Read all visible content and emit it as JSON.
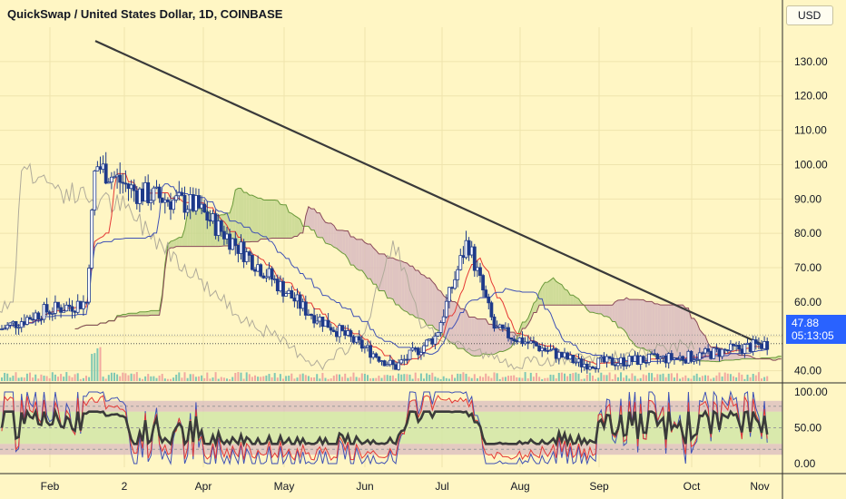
{
  "title": "QuickSwap / United States Dollar, 1D, COINBASE",
  "currency": "USD",
  "last_price": "47.88",
  "countdown": "05:13:05",
  "colors": {
    "background": "#fff6c4",
    "up": "#1e3a8a",
    "down": "#1e3a8a",
    "trendline": "#3a3a3a",
    "tenkan": "#e53935",
    "kijun": "#3f51b5",
    "lagging": "#b0ab9a",
    "cloud_bull": "#c3d68e",
    "cloud_bear": "#d7b8c0",
    "rsi_line": "#3a3a3a",
    "stoch_k": "#3f51b5",
    "stoch_d": "#e53935",
    "price_tag": "#2962ff"
  },
  "x_labels": [
    "Feb",
    "2",
    "Apr",
    "May",
    "Jun",
    "Jul",
    "Aug",
    "Sep",
    "Oct",
    "Nov"
  ],
  "chart_data": [
    {
      "type": "candlestick",
      "title": "QuickSwap / United States Dollar, 1D, COINBASE",
      "x_ticks": [
        "Feb",
        "2",
        "Apr",
        "May",
        "Jun",
        "Jul",
        "Aug",
        "Sep",
        "Oct",
        "Nov"
      ],
      "y_ticks": [
        "40.00",
        "50.00",
        "60.00",
        "70.00",
        "80.00",
        "90.00",
        "100.00",
        "110.00",
        "120.00",
        "130.00"
      ],
      "ylim": [
        37,
        140
      ],
      "approx_close_path": [
        {
          "x": "Jan",
          "y": 52
        },
        {
          "x": "Feb",
          "y": 57
        },
        {
          "x": "Feb",
          "y": 60
        },
        {
          "x": "2",
          "y": 100
        },
        {
          "x": "2",
          "y": 92
        },
        {
          "x": "Apr",
          "y": 88
        },
        {
          "x": "May",
          "y": 58
        },
        {
          "x": "Jun",
          "y": 41
        },
        {
          "x": "Jul",
          "y": 50
        },
        {
          "x": "Jul",
          "y": 78
        },
        {
          "x": "Aug",
          "y": 52
        },
        {
          "x": "Sep",
          "y": 42
        },
        {
          "x": "Oct",
          "y": 44
        },
        {
          "x": "Nov",
          "y": 47.88
        }
      ],
      "trendline": [
        {
          "x": "2",
          "y": 136
        },
        {
          "x": "Nov",
          "y": 47
        }
      ],
      "last_price": 47.88
    },
    {
      "type": "line",
      "panel": "oscillator",
      "y_ticks": [
        "0.00",
        "50.00",
        "100.00"
      ],
      "ylim": [
        0,
        100
      ],
      "band": [
        20,
        80
      ]
    }
  ]
}
